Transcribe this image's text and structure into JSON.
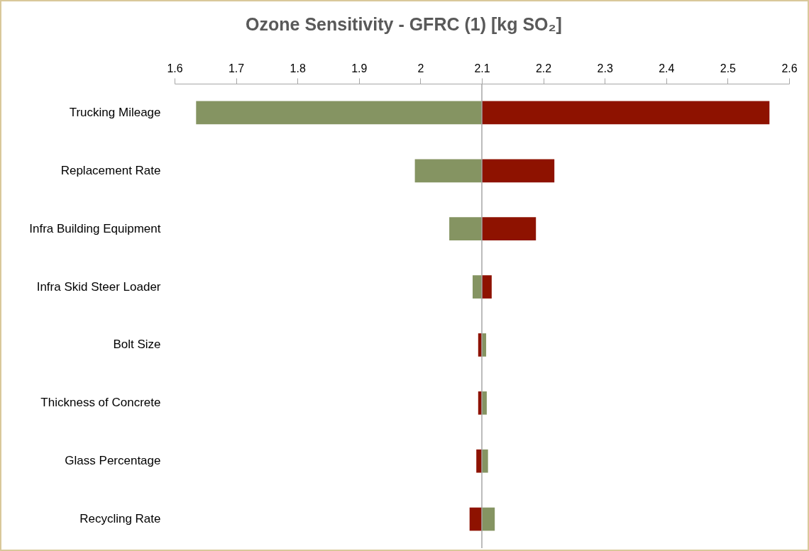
{
  "chart_data": {
    "type": "bar",
    "orientation": "horizontal",
    "title": "Ozone Sensitivity - GFRC (1) [kg SO₂]",
    "categories": [
      "Trucking Mileage",
      "Replacement Rate",
      "Infra Building Equipment",
      "Infra Skid Steer Loader",
      "Bolt Size ",
      "Thickness of Concrete",
      "Glass Percentage",
      "Recycling Rate"
    ],
    "series": [
      {
        "color": "#859462",
        "base": [
          2.1,
          2.1,
          2.1,
          2.1,
          2.1,
          2.1,
          2.1,
          2.1
        ],
        "values": [
          -0.465,
          -0.109,
          -0.053,
          -0.015,
          0.007,
          0.008,
          0.01,
          0.021
        ]
      },
      {
        "color": "#8e1200",
        "base": [
          2.1,
          2.1,
          2.1,
          2.1,
          2.1,
          2.1,
          2.1,
          2.1
        ],
        "values": [
          0.468,
          0.118,
          0.088,
          0.016,
          -0.006,
          -0.006,
          -0.009,
          -0.02
        ]
      }
    ],
    "xlim": [
      1.6,
      2.6
    ],
    "xticks": [
      1.6,
      1.7,
      1.8,
      1.9,
      2,
      2.1,
      2.2,
      2.3,
      2.4,
      2.5,
      2.6
    ],
    "ref_lines": [
      {
        "axis": "x",
        "value": 2.1,
        "color": "#a6a6a6"
      }
    ],
    "grid": false,
    "legend": false
  }
}
